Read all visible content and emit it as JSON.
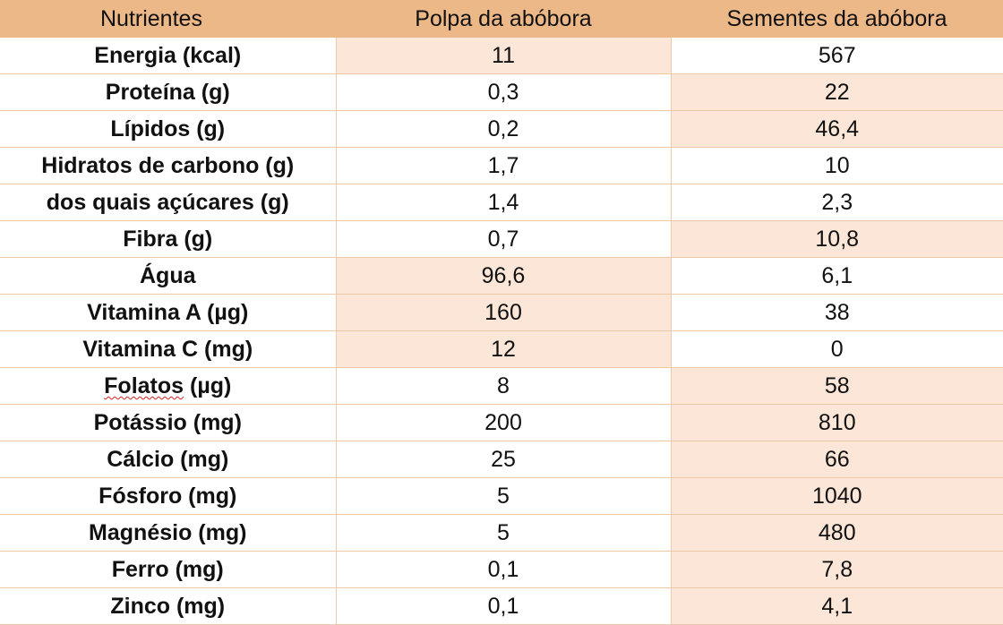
{
  "table": {
    "headers": [
      "Nutrientes",
      "Polpa da abóbora",
      "Sementes da abóbora"
    ],
    "rows": [
      {
        "nutrient": "Energia (kcal)",
        "pulp": "11",
        "seeds": "567",
        "highlight": "pulp"
      },
      {
        "nutrient": "Proteína (g)",
        "pulp": "0,3",
        "seeds": "22",
        "highlight": "seeds"
      },
      {
        "nutrient": "Lípidos (g)",
        "pulp": "0,2",
        "seeds": "46,4",
        "highlight": "seeds"
      },
      {
        "nutrient": "Hidratos de carbono (g)",
        "pulp": "1,7",
        "seeds": "10",
        "highlight": ""
      },
      {
        "nutrient": "dos quais açúcares (g)",
        "pulp": "1,4",
        "seeds": "2,3",
        "highlight": ""
      },
      {
        "nutrient": "Fibra (g)",
        "pulp": "0,7",
        "seeds": "10,8",
        "highlight": "seeds"
      },
      {
        "nutrient": "Água",
        "pulp": "96,6",
        "seeds": "6,1",
        "highlight": "pulp"
      },
      {
        "nutrient": "Vitamina A (µg)",
        "pulp": "160",
        "seeds": "38",
        "highlight": "pulp"
      },
      {
        "nutrient": "Vitamina C (mg)",
        "pulp": "12",
        "seeds": "0",
        "highlight": "pulp"
      },
      {
        "nutrient": "Folatos (µg)",
        "nutrient_word": "Folatos",
        "nutrient_unit": " (µg)",
        "pulp": "8",
        "seeds": "58",
        "highlight": "seeds"
      },
      {
        "nutrient": "Potássio (mg)",
        "pulp": "200",
        "seeds": "810",
        "highlight": "seeds"
      },
      {
        "nutrient": "Cálcio (mg)",
        "pulp": "25",
        "seeds": "66",
        "highlight": "seeds"
      },
      {
        "nutrient": "Fósforo (mg)",
        "pulp": "5",
        "seeds": "1040",
        "highlight": "seeds"
      },
      {
        "nutrient": "Magnésio (mg)",
        "pulp": "5",
        "seeds": "480",
        "highlight": "seeds"
      },
      {
        "nutrient": "Ferro (mg)",
        "pulp": "0,1",
        "seeds": "7,8",
        "highlight": "seeds"
      },
      {
        "nutrient": "Zinco (mg)",
        "pulp": "0,1",
        "seeds": "4,1",
        "highlight": "seeds"
      }
    ]
  },
  "colors": {
    "header_bg": "#edb888",
    "highlight_bg": "#fbe6d8",
    "border": "#edc9a8",
    "spellcheck_underline": "#d42020"
  }
}
